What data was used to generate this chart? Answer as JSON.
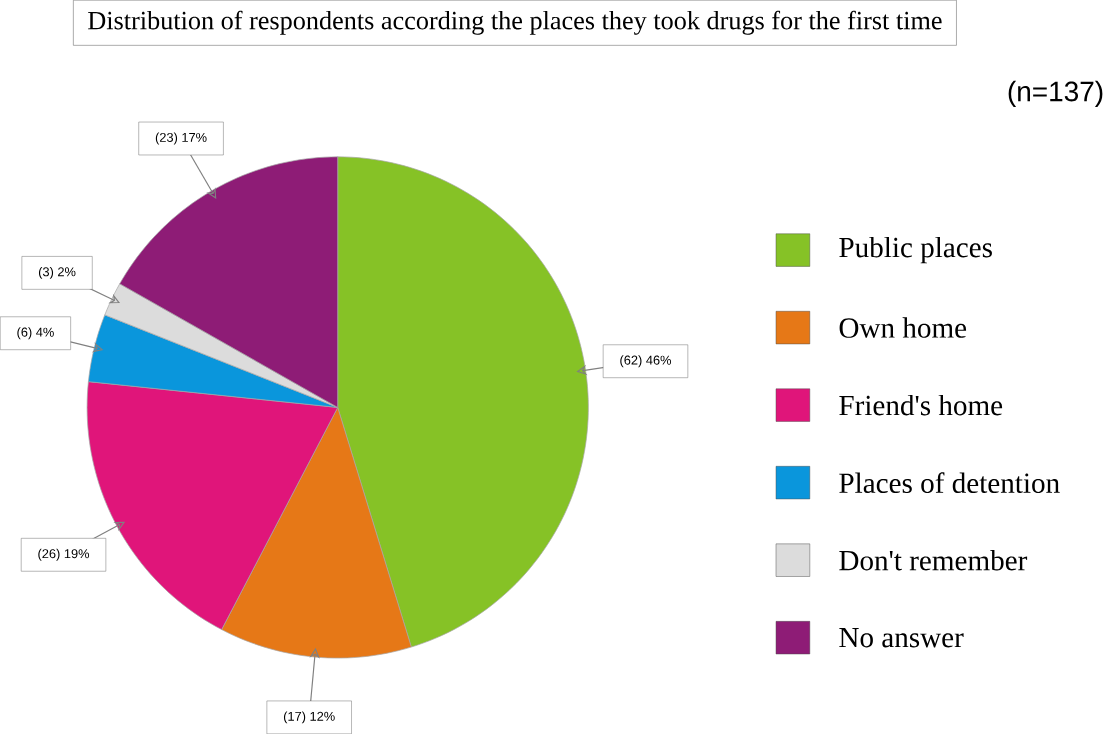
{
  "chart_data": {
    "type": "pie",
    "title": "Distribution of respondents according the places they took drugs for the first time",
    "annotations": [
      "(n=137)"
    ],
    "categories": [
      "Public places",
      "Own home",
      "Friend's home",
      "Places of detention",
      "Don't remember",
      "No answer"
    ],
    "values": [
      62,
      17,
      26,
      6,
      3,
      23
    ],
    "value_labels": [
      "(62) 46%",
      "(17) 12%",
      "(26) 19%",
      "(6) 4%",
      "(3) 2%",
      "(23) 17%"
    ],
    "colors": [
      "#86c226",
      "#e67817",
      "#e0157a",
      "#0a96dc",
      "#dcdcdc",
      "#8e1c76"
    ],
    "legend": "right"
  }
}
